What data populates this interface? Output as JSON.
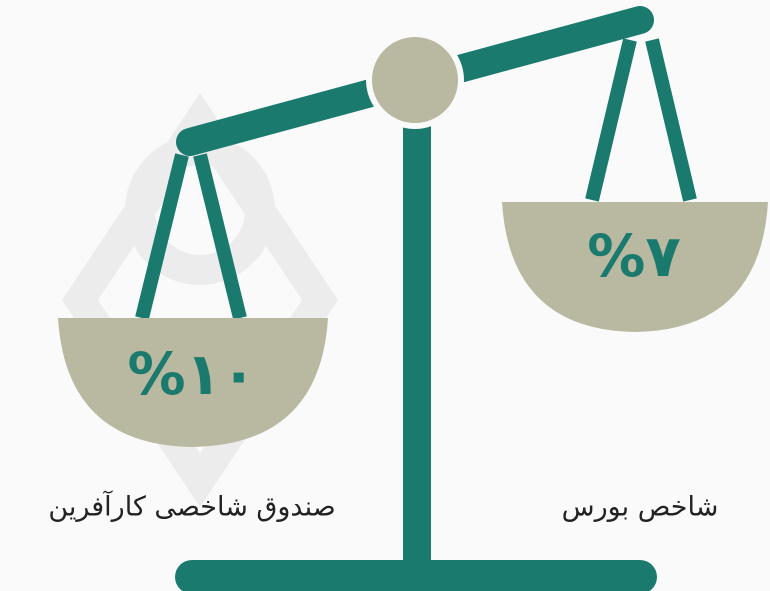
{
  "left_pan": {
    "value": "%۱۰",
    "label": "صندوق شاخصی کارآفرین"
  },
  "right_pan": {
    "value": "%۷",
    "label": "شاخص بورس"
  }
}
